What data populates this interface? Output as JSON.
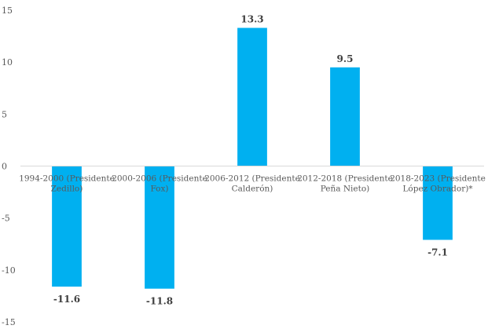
{
  "chart_data": {
    "type": "bar",
    "categories": [
      [
        "1994-2000 (Presidente",
        "Zedillo)"
      ],
      [
        "2000-2006 (Presidente",
        "Fox)"
      ],
      [
        "2006-2012 (Presidente",
        "Calderón)"
      ],
      [
        "2012-2018 (Presidente",
        "Peña Nieto)"
      ],
      [
        "2018-2023 (Presidente",
        "López Obrador)*"
      ]
    ],
    "values": [
      -11.6,
      -11.8,
      13.3,
      9.5,
      -7.1
    ],
    "data_labels": [
      "-11.6",
      "-11.8",
      "13.3",
      "9.5",
      "-7.1"
    ],
    "ylim": [
      -15,
      15
    ],
    "yticks": [
      -15,
      -10,
      -5,
      0,
      5,
      10,
      15
    ],
    "title": "",
    "xlabel": "",
    "ylabel": "",
    "grid": false,
    "colors": {
      "bar": "#00b0f0",
      "axis": "#d9d9d9"
    }
  }
}
